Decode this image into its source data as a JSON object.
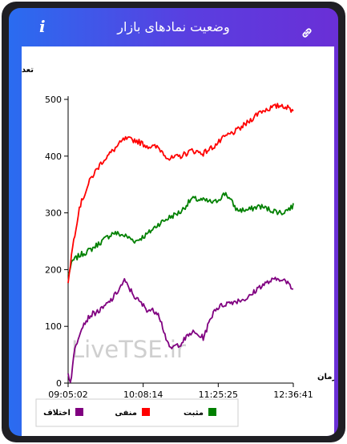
{
  "header": {
    "title": "وضعیت نمادهای بازار",
    "info_icon": "info-icon",
    "link_icon": "link-icon"
  },
  "watermark": "LiveTSE.ir",
  "chart_data": {
    "type": "line",
    "ylabel": "تعداد نماد",
    "xlabel": "زمان",
    "ylim": [
      0,
      500
    ],
    "yticks": [
      0,
      100,
      200,
      300,
      400,
      500
    ],
    "xticks": [
      "09:05:02",
      "10:08:14",
      "11:25:25",
      "12:36:41"
    ],
    "legend_position": "bottom",
    "grid": false,
    "series": [
      {
        "name": "مثبت",
        "color": "#008000",
        "x": [
          0,
          0.02,
          0.05,
          0.1,
          0.15,
          0.2,
          0.25,
          0.3,
          0.35,
          0.4,
          0.45,
          0.5,
          0.55,
          0.6,
          0.65,
          0.7,
          0.75,
          0.8,
          0.85,
          0.9,
          0.95,
          1
        ],
        "values": [
          190,
          215,
          225,
          235,
          250,
          265,
          260,
          250,
          262,
          280,
          292,
          302,
          325,
          322,
          318,
          335,
          305,
          305,
          312,
          305,
          300,
          312
        ]
      },
      {
        "name": "منفی",
        "color": "#ff0000",
        "x": [
          0,
          0.02,
          0.05,
          0.1,
          0.15,
          0.2,
          0.25,
          0.3,
          0.35,
          0.4,
          0.45,
          0.5,
          0.55,
          0.6,
          0.65,
          0.7,
          0.75,
          0.8,
          0.85,
          0.9,
          0.95,
          1
        ],
        "values": [
          180,
          240,
          310,
          360,
          390,
          410,
          430,
          428,
          418,
          415,
          395,
          400,
          410,
          405,
          418,
          435,
          445,
          460,
          478,
          485,
          490,
          480
        ]
      },
      {
        "name": "اختلاف",
        "color": "#800080",
        "x": [
          0,
          0.01,
          0.03,
          0.06,
          0.1,
          0.15,
          0.2,
          0.25,
          0.3,
          0.35,
          0.4,
          0.45,
          0.5,
          0.55,
          0.6,
          0.65,
          0.7,
          0.75,
          0.8,
          0.85,
          0.9,
          0.95,
          1
        ],
        "values": [
          20,
          0,
          60,
          100,
          120,
          130,
          150,
          180,
          150,
          130,
          125,
          60,
          70,
          90,
          80,
          130,
          140,
          145,
          150,
          170,
          180,
          185,
          165
        ]
      }
    ]
  }
}
